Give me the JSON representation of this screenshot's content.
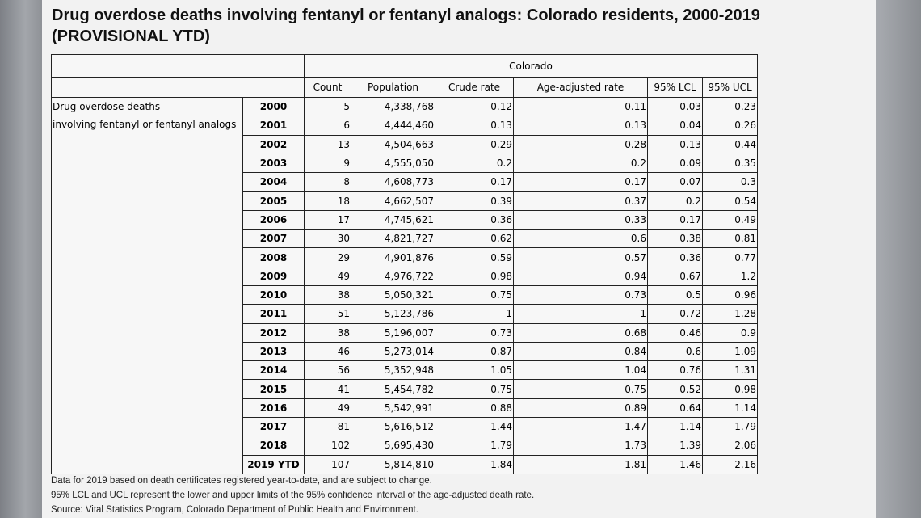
{
  "title_line1": "Drug overdose deaths involving fentanyl or fentanyl analogs:  Colorado residents, 2000-2019",
  "title_line2": "(PROVISIONAL YTD)",
  "region_header": "Colorado",
  "column_headers": [
    "Count",
    "Population",
    "Crude rate",
    "Age-adjusted rate",
    "95% LCL",
    "95% UCL"
  ],
  "row_label_line1": "Drug overdose deaths",
  "row_label_line2": "involving fentanyl or fentanyl analogs",
  "rows": [
    {
      "year": "2000",
      "count": "5",
      "population": "4,338,768",
      "crude": "0.12",
      "adjusted": "0.11",
      "lcl": "0.03",
      "ucl": "0.23"
    },
    {
      "year": "2001",
      "count": "6",
      "population": "4,444,460",
      "crude": "0.13",
      "adjusted": "0.13",
      "lcl": "0.04",
      "ucl": "0.26"
    },
    {
      "year": "2002",
      "count": "13",
      "population": "4,504,663",
      "crude": "0.29",
      "adjusted": "0.28",
      "lcl": "0.13",
      "ucl": "0.44"
    },
    {
      "year": "2003",
      "count": "9",
      "population": "4,555,050",
      "crude": "0.2",
      "adjusted": "0.2",
      "lcl": "0.09",
      "ucl": "0.35"
    },
    {
      "year": "2004",
      "count": "8",
      "population": "4,608,773",
      "crude": "0.17",
      "adjusted": "0.17",
      "lcl": "0.07",
      "ucl": "0.3"
    },
    {
      "year": "2005",
      "count": "18",
      "population": "4,662,507",
      "crude": "0.39",
      "adjusted": "0.37",
      "lcl": "0.2",
      "ucl": "0.54"
    },
    {
      "year": "2006",
      "count": "17",
      "population": "4,745,621",
      "crude": "0.36",
      "adjusted": "0.33",
      "lcl": "0.17",
      "ucl": "0.49"
    },
    {
      "year": "2007",
      "count": "30",
      "population": "4,821,727",
      "crude": "0.62",
      "adjusted": "0.6",
      "lcl": "0.38",
      "ucl": "0.81"
    },
    {
      "year": "2008",
      "count": "29",
      "population": "4,901,876",
      "crude": "0.59",
      "adjusted": "0.57",
      "lcl": "0.36",
      "ucl": "0.77"
    },
    {
      "year": "2009",
      "count": "49",
      "population": "4,976,722",
      "crude": "0.98",
      "adjusted": "0.94",
      "lcl": "0.67",
      "ucl": "1.2"
    },
    {
      "year": "2010",
      "count": "38",
      "population": "5,050,321",
      "crude": "0.75",
      "adjusted": "0.73",
      "lcl": "0.5",
      "ucl": "0.96"
    },
    {
      "year": "2011",
      "count": "51",
      "population": "5,123,786",
      "crude": "1",
      "adjusted": "1",
      "lcl": "0.72",
      "ucl": "1.28"
    },
    {
      "year": "2012",
      "count": "38",
      "population": "5,196,007",
      "crude": "0.73",
      "adjusted": "0.68",
      "lcl": "0.46",
      "ucl": "0.9"
    },
    {
      "year": "2013",
      "count": "46",
      "population": "5,273,014",
      "crude": "0.87",
      "adjusted": "0.84",
      "lcl": "0.6",
      "ucl": "1.09"
    },
    {
      "year": "2014",
      "count": "56",
      "population": "5,352,948",
      "crude": "1.05",
      "adjusted": "1.04",
      "lcl": "0.76",
      "ucl": "1.31"
    },
    {
      "year": "2015",
      "count": "41",
      "population": "5,454,782",
      "crude": "0.75",
      "adjusted": "0.75",
      "lcl": "0.52",
      "ucl": "0.98"
    },
    {
      "year": "2016",
      "count": "49",
      "population": "5,542,991",
      "crude": "0.88",
      "adjusted": "0.89",
      "lcl": "0.64",
      "ucl": "1.14"
    },
    {
      "year": "2017",
      "count": "81",
      "population": "5,616,512",
      "crude": "1.44",
      "adjusted": "1.47",
      "lcl": "1.14",
      "ucl": "1.79"
    },
    {
      "year": "2018",
      "count": "102",
      "population": "5,695,430",
      "crude": "1.79",
      "adjusted": "1.73",
      "lcl": "1.39",
      "ucl": "2.06"
    },
    {
      "year": "2019 YTD",
      "count": "107",
      "population": "5,814,810",
      "crude": "1.84",
      "adjusted": "1.81",
      "lcl": "1.46",
      "ucl": "2.16"
    }
  ],
  "notes": [
    "Data for 2019 based on death certificates registered year-to-date, and are subject to change.",
    "95% LCL and UCL represent the lower and upper limits of the 95% confidence interval of the age-adjusted death rate.",
    "Source: Vital Statistics Program, Colorado Department of Public Health and Environment."
  ]
}
